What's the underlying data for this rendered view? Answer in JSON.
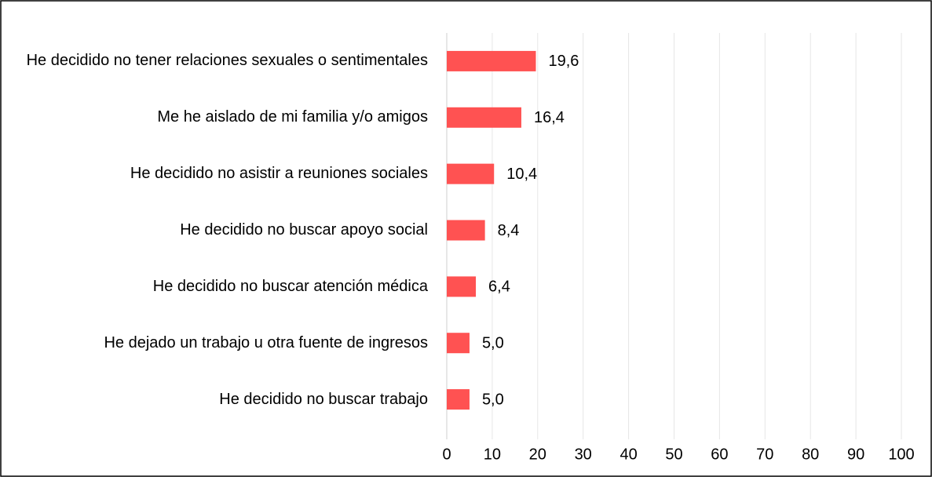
{
  "chart_data": {
    "type": "barh",
    "categories": [
      "He decidido no tener relaciones sexuales o sentimentales",
      "Me he aislado de mi familia y/o amigos",
      "He decidido no asistir a reuniones sociales",
      "He decidido no buscar apoyo social",
      "He decidido no buscar atención médica",
      "He dejado un trabajo u otra fuente de ingresos",
      "He decidido no buscar trabajo"
    ],
    "values": [
      19.6,
      16.4,
      10.4,
      8.4,
      6.4,
      5.0,
      5.0
    ],
    "value_labels": [
      "19,6",
      "16,4",
      "10,4",
      "8,4",
      "6,4",
      "5,0",
      "5,0"
    ],
    "color": "#ff5252",
    "xlim": [
      0,
      100
    ],
    "xticks": [
      0,
      10,
      20,
      30,
      40,
      50,
      60,
      70,
      80,
      90,
      100
    ],
    "grid": true
  }
}
